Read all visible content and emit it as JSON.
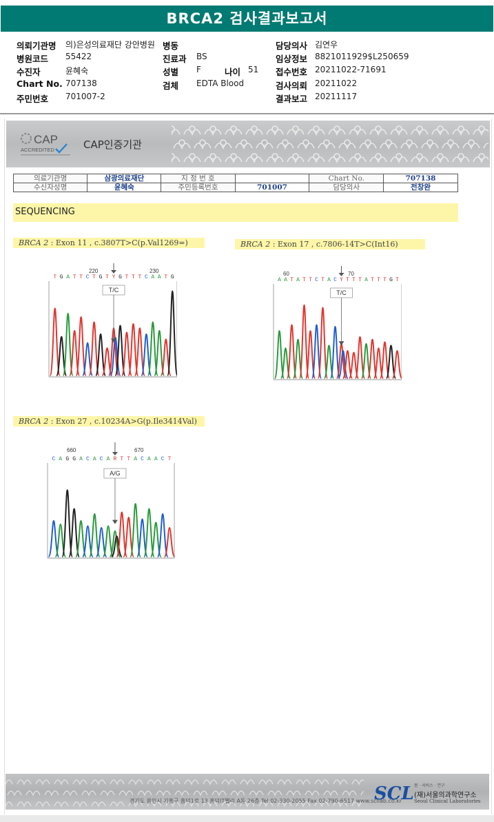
{
  "title": "BRCA2 검사결과보고서",
  "patient": {
    "institution_label": "의뢰기관명",
    "institution": "의)은성의료재단 강안병원",
    "ward_label": "병동",
    "ward": "",
    "doctor_label": "담당의사",
    "doctor": "김연우",
    "hospital_code_label": "병원코드",
    "hospital_code": "55422",
    "dept_label": "진료과",
    "dept": "BS",
    "clinical_label": "임상정보",
    "clinical": "8821011929$L250659",
    "patient_label": "수진자",
    "patient_name": "윤혜숙",
    "sex_label": "성별",
    "sex": "F",
    "age_label": "나이",
    "age": "51",
    "receipt_label": "접수번호",
    "receipt": "20211022-71691",
    "chart_label": "Chart No.",
    "chart": "707138",
    "specimen_label": "검체",
    "specimen": "EDTA Blood",
    "request_label": "검사의뢰",
    "request_date": "20211022",
    "id_label": "주민번호",
    "id_number": "701007-2",
    "report_label": "결과보고",
    "report_date": "20211117"
  },
  "cap": {
    "logo_text": "CAP",
    "accredited": "ACCREDITED",
    "title": "CAP인증기관"
  },
  "table": {
    "r1": [
      "의료기관명",
      "삼광의료재단",
      "지 정 번 호",
      "",
      "Chart No.",
      "707138"
    ],
    "r2": [
      "수신자성명",
      "윤혜숙",
      "주민등록번호",
      "701007",
      "담당의사",
      "전창완"
    ]
  },
  "section": "SEQUENCING",
  "variants": [
    {
      "gene": "BRCA 2",
      "desc": " : Exon 11 , c.3807T>C(p.Val1269=)",
      "pos_left": "220",
      "pos_right": "230",
      "bases": "TGATTCTGTYGTTTCAATG",
      "call": "T/C"
    },
    {
      "gene": "BRCA 2",
      "desc": " : Exon 17 , c.7806-14T>C(Int16)",
      "pos_left": "60",
      "pos_right": "70",
      "bases": "AATATTCTACYTTTATTTGT",
      "call": "T/C"
    },
    {
      "gene": "BRCA 2",
      "desc": " : Exon 27 , c.10234A>G(p.Ile3414Val)",
      "pos_left": "660",
      "pos_right": "670",
      "bases": "CAGGACACARTTACAACT",
      "call": "A/G"
    }
  ],
  "footer": {
    "address": "경기도 용인시 기흥구 흥덕1로 13 흥덕IT밸리 A동 26층  Tel.02-330-2055  Fax.02-790-6517  www.scllab.co.kr",
    "logo": "SCL",
    "tagline": "봉  · 서비스 · 연구",
    "name_ko": "(재)서울의과학연구소",
    "name_en": "Seoul Clinical Laboratories"
  },
  "colors": {
    "header": "#007a72",
    "highlight": "#fdf6a8",
    "A": "#2a9a3c",
    "C": "#1f5fd0",
    "G": "#222222",
    "T": "#e0362f"
  }
}
